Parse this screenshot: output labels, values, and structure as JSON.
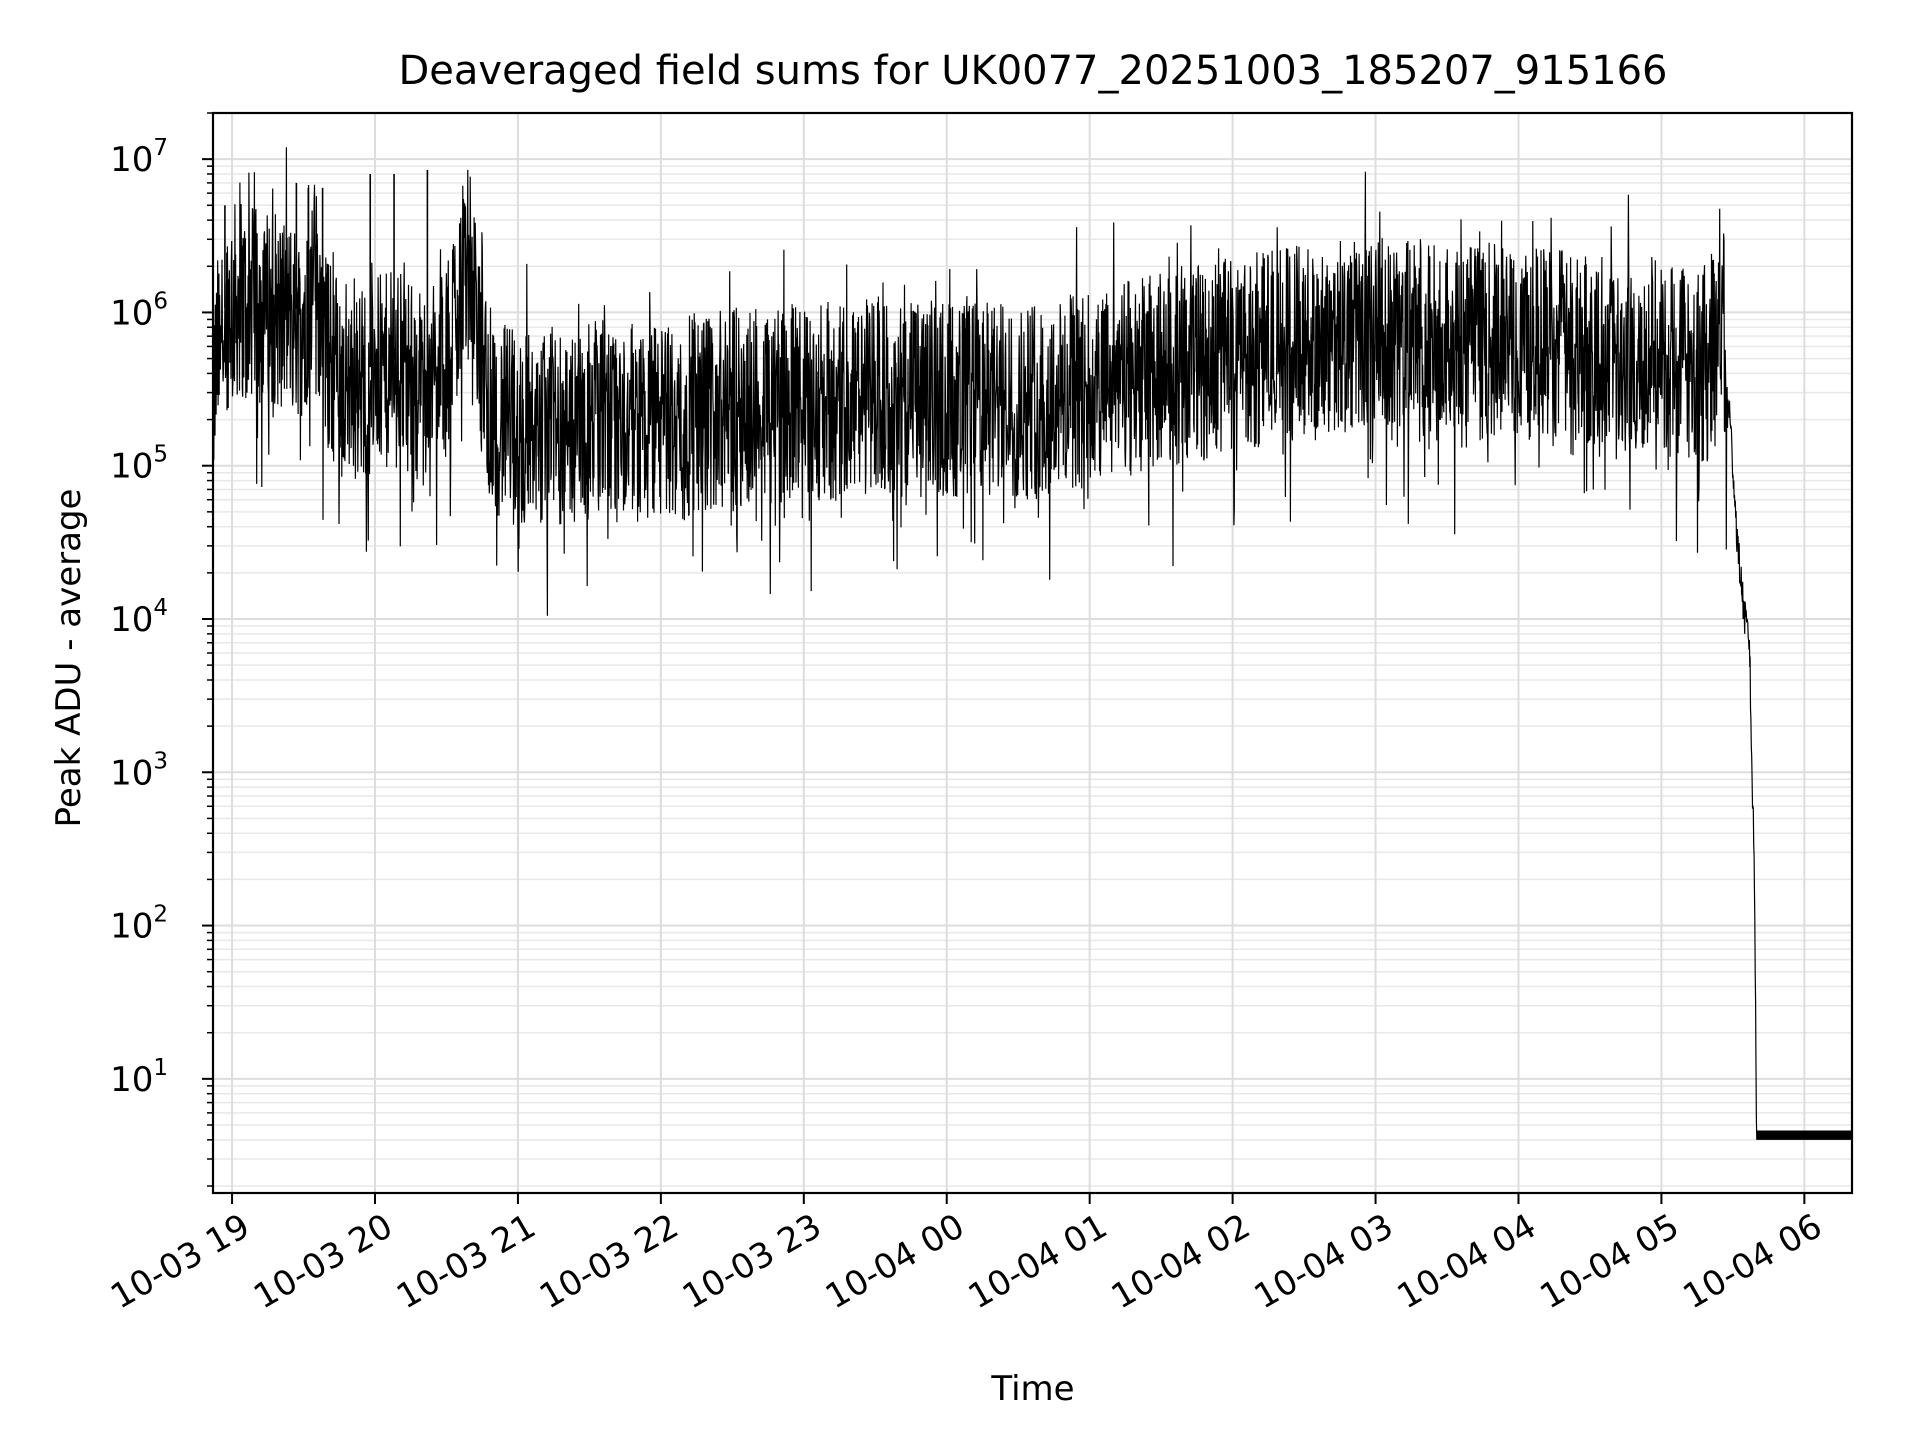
{
  "chart_data": {
    "type": "line",
    "title": "Deaveraged field sums for UK0077_20251003_185207_915166",
    "xlabel": "Time",
    "ylabel": "Peak ADU - average",
    "yscale": "log",
    "ylim": [
      1.8,
      20000000
    ],
    "xlim": [
      "2025-10-03 18:52",
      "2025-10-04 06:20"
    ],
    "grid": "major and minor",
    "line_color": "#000000",
    "x_ticks": [
      "10-03 19",
      "10-03 20",
      "10-03 21",
      "10-03 22",
      "10-03 23",
      "10-04 00",
      "10-04 01",
      "10-04 02",
      "10-04 03",
      "10-04 04",
      "10-04 05",
      "10-04 06"
    ],
    "y_ticks": [
      {
        "base": "10",
        "exp": "1",
        "value": 10
      },
      {
        "base": "10",
        "exp": "2",
        "value": 100
      },
      {
        "base": "10",
        "exp": "3",
        "value": 1000
      },
      {
        "base": "10",
        "exp": "4",
        "value": 10000
      },
      {
        "base": "10",
        "exp": "5",
        "value": 100000
      },
      {
        "base": "10",
        "exp": "6",
        "value": 1000000
      },
      {
        "base": "10",
        "exp": "7",
        "value": 10000000
      }
    ],
    "series": [
      {
        "points": [
          [
            "2025-10-03 18:52",
            300000
          ],
          [
            "2025-10-03 18:55",
            900000
          ],
          [
            "2025-10-03 19:00",
            1400000
          ],
          [
            "2025-10-03 19:10",
            1300000
          ],
          [
            "2025-10-03 19:20",
            1200000
          ],
          [
            "2025-10-03 19:30",
            1000000
          ],
          [
            "2025-10-03 19:35",
            2000000
          ],
          [
            "2025-10-03 19:40",
            600000
          ],
          [
            "2025-10-03 19:50",
            400000
          ],
          [
            "2025-10-03 20:00",
            450000
          ],
          [
            "2025-10-03 20:10",
            500000
          ],
          [
            "2025-10-03 20:20",
            400000
          ],
          [
            "2025-10-03 20:30",
            500000
          ],
          [
            "2025-10-03 20:38",
            3500000
          ],
          [
            "2025-10-03 20:45",
            500000
          ],
          [
            "2025-10-03 20:50",
            250000
          ],
          [
            "2025-10-03 21:00",
            200000
          ],
          [
            "2025-10-03 21:30",
            220000
          ],
          [
            "2025-10-03 22:00",
            220000
          ],
          [
            "2025-10-03 22:30",
            280000
          ],
          [
            "2025-10-03 23:00",
            300000
          ],
          [
            "2025-10-03 23:30",
            320000
          ],
          [
            "2025-10-04 00:00",
            320000
          ],
          [
            "2025-10-04 00:30",
            300000
          ],
          [
            "2025-10-04 01:00",
            350000
          ],
          [
            "2025-10-04 01:30",
            500000
          ],
          [
            "2025-10-04 02:00",
            600000
          ],
          [
            "2025-10-04 02:30",
            800000
          ],
          [
            "2025-10-04 03:00",
            800000
          ],
          [
            "2025-10-04 03:30",
            750000
          ],
          [
            "2025-10-04 04:00",
            750000
          ],
          [
            "2025-10-04 04:30",
            700000
          ],
          [
            "2025-10-04 05:00",
            600000
          ],
          [
            "2025-10-04 05:20",
            550000
          ],
          [
            "2025-10-04 05:25",
            1600000
          ],
          [
            "2025-10-04 05:30",
            100000
          ],
          [
            "2025-10-04 05:32",
            30000
          ],
          [
            "2025-10-04 05:35",
            10000
          ],
          [
            "2025-10-04 05:37",
            7000
          ],
          [
            "2025-10-04 05:38",
            1000
          ],
          [
            "2025-10-04 05:39",
            250
          ],
          [
            "2025-10-04 05:40",
            4
          ],
          [
            "2025-10-04 06:20",
            4
          ]
        ],
        "spike_maxima": [
          [
            "2025-10-03 18:57",
            5000000
          ],
          [
            "2025-10-03 19:27",
            7000000
          ],
          [
            "2025-10-03 19:32",
            6500000
          ],
          [
            "2025-10-03 19:38",
            6500000
          ],
          [
            "2025-10-03 19:58",
            8000000
          ],
          [
            "2025-10-03 20:08",
            8000000
          ],
          [
            "2025-10-03 20:22",
            8500000
          ],
          [
            "2025-10-03 20:37",
            5500000
          ]
        ]
      }
    ]
  }
}
